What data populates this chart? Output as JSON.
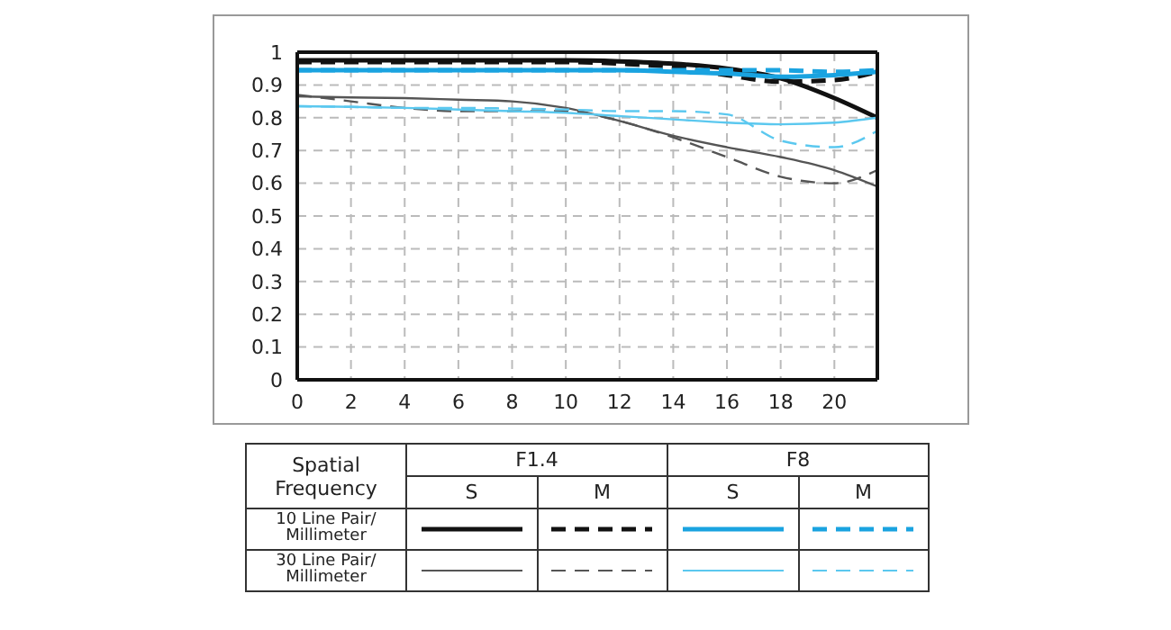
{
  "chart_data": {
    "type": "line",
    "x": [
      0,
      2,
      4,
      6,
      8,
      10,
      12,
      14,
      16,
      18,
      20,
      21.6
    ],
    "xlim": [
      0,
      21.6
    ],
    "xticks": [
      0,
      2,
      4,
      6,
      8,
      10,
      12,
      14,
      16,
      18,
      20
    ],
    "ylim": [
      0,
      1
    ],
    "yticks": [
      0,
      0.1,
      0.2,
      0.3,
      0.4,
      0.5,
      0.6,
      0.7,
      0.8,
      0.9,
      1
    ],
    "grid": true,
    "marker": "none",
    "annotations": [
      "Spatial Frequency",
      "F1.4",
      "F8",
      "S",
      "M",
      "S",
      "M",
      "10 Line Pair/ Millimeter",
      "30 Line Pair/ Millimeter"
    ],
    "series": [
      {
        "color": "#111111",
        "line_style": "solid",
        "values": [
          0.975,
          0.975,
          0.975,
          0.975,
          0.975,
          0.975,
          0.972,
          0.965,
          0.95,
          0.92,
          0.86,
          0.8
        ]
      },
      {
        "color": "#111111",
        "line_style": "dashed",
        "values": [
          0.97,
          0.97,
          0.97,
          0.97,
          0.97,
          0.97,
          0.965,
          0.955,
          0.93,
          0.91,
          0.915,
          0.94
        ]
      },
      {
        "color": "#1aa3e0",
        "line_style": "solid",
        "values": [
          0.945,
          0.945,
          0.945,
          0.945,
          0.945,
          0.945,
          0.945,
          0.94,
          0.935,
          0.925,
          0.93,
          0.94
        ]
      },
      {
        "color": "#1aa3e0",
        "line_style": "dashed",
        "values": [
          0.945,
          0.945,
          0.945,
          0.945,
          0.945,
          0.945,
          0.945,
          0.945,
          0.945,
          0.945,
          0.94,
          0.945
        ]
      },
      {
        "color": "#555555",
        "line_style": "solid",
        "values": [
          0.865,
          0.862,
          0.86,
          0.855,
          0.85,
          0.83,
          0.79,
          0.745,
          0.71,
          0.68,
          0.64,
          0.59
        ]
      },
      {
        "color": "#555555",
        "line_style": "dashed",
        "values": [
          0.87,
          0.85,
          0.83,
          0.82,
          0.82,
          0.82,
          0.79,
          0.74,
          0.68,
          0.62,
          0.6,
          0.64
        ]
      },
      {
        "color": "#5bc8ef",
        "line_style": "solid",
        "values": [
          0.835,
          0.833,
          0.83,
          0.825,
          0.82,
          0.815,
          0.805,
          0.795,
          0.785,
          0.78,
          0.785,
          0.8
        ]
      },
      {
        "color": "#5bc8ef",
        "line_style": "dashed",
        "values": [
          0.835,
          0.833,
          0.83,
          0.83,
          0.828,
          0.825,
          0.82,
          0.82,
          0.81,
          0.73,
          0.71,
          0.76
        ]
      }
    ]
  }
}
